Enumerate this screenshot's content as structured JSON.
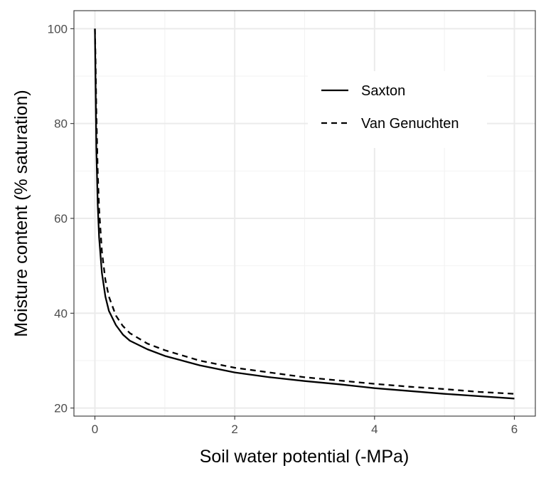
{
  "chart_data": {
    "type": "line",
    "xlabel": "Soil water potential (-MPa)",
    "ylabel": "Moisture content (% saturation)",
    "xlim": [
      -0.3,
      6.3
    ],
    "ylim": [
      18.3,
      103.8
    ],
    "x_ticks": [
      0,
      2,
      4,
      6
    ],
    "x_tick_labels": [
      "0",
      "2",
      "4",
      "6"
    ],
    "y_ticks": [
      20,
      40,
      60,
      80,
      100
    ],
    "y_tick_labels": [
      "20",
      "40",
      "60",
      "80",
      "100"
    ],
    "grid": true,
    "legend_position": "top-right",
    "series": [
      {
        "name": "Saxton",
        "style": "solid",
        "color": "#000000",
        "points": [
          [
            0,
            100
          ],
          [
            0.01,
            88
          ],
          [
            0.02,
            75
          ],
          [
            0.04,
            63
          ],
          [
            0.06,
            56
          ],
          [
            0.1,
            48.5
          ],
          [
            0.15,
            43.5
          ],
          [
            0.2,
            40.5
          ],
          [
            0.3,
            37.5
          ],
          [
            0.4,
            35.5
          ],
          [
            0.5,
            34.2
          ],
          [
            0.75,
            32.4
          ],
          [
            1,
            31
          ],
          [
            1.5,
            29
          ],
          [
            2,
            27.5
          ],
          [
            2.5,
            26.5
          ],
          [
            3,
            25.7
          ],
          [
            3.5,
            25
          ],
          [
            4,
            24.2
          ],
          [
            4.5,
            23.6
          ],
          [
            5,
            23
          ],
          [
            5.5,
            22.5
          ],
          [
            6,
            22
          ]
        ]
      },
      {
        "name": "Van Genuchten",
        "style": "dashed",
        "color": "#000000",
        "points": [
          [
            0,
            100
          ],
          [
            0.01,
            93
          ],
          [
            0.02,
            83
          ],
          [
            0.04,
            70
          ],
          [
            0.06,
            62
          ],
          [
            0.1,
            53
          ],
          [
            0.15,
            47
          ],
          [
            0.2,
            43.5
          ],
          [
            0.3,
            39.5
          ],
          [
            0.4,
            37.3
          ],
          [
            0.5,
            35.8
          ],
          [
            0.75,
            33.6
          ],
          [
            1,
            32.2
          ],
          [
            1.5,
            30
          ],
          [
            2,
            28.5
          ],
          [
            2.5,
            27.5
          ],
          [
            3,
            26.5
          ],
          [
            3.5,
            25.8
          ],
          [
            4,
            25.1
          ],
          [
            4.5,
            24.5
          ],
          [
            5,
            24
          ],
          [
            5.5,
            23.4
          ],
          [
            6,
            23
          ]
        ]
      }
    ]
  }
}
